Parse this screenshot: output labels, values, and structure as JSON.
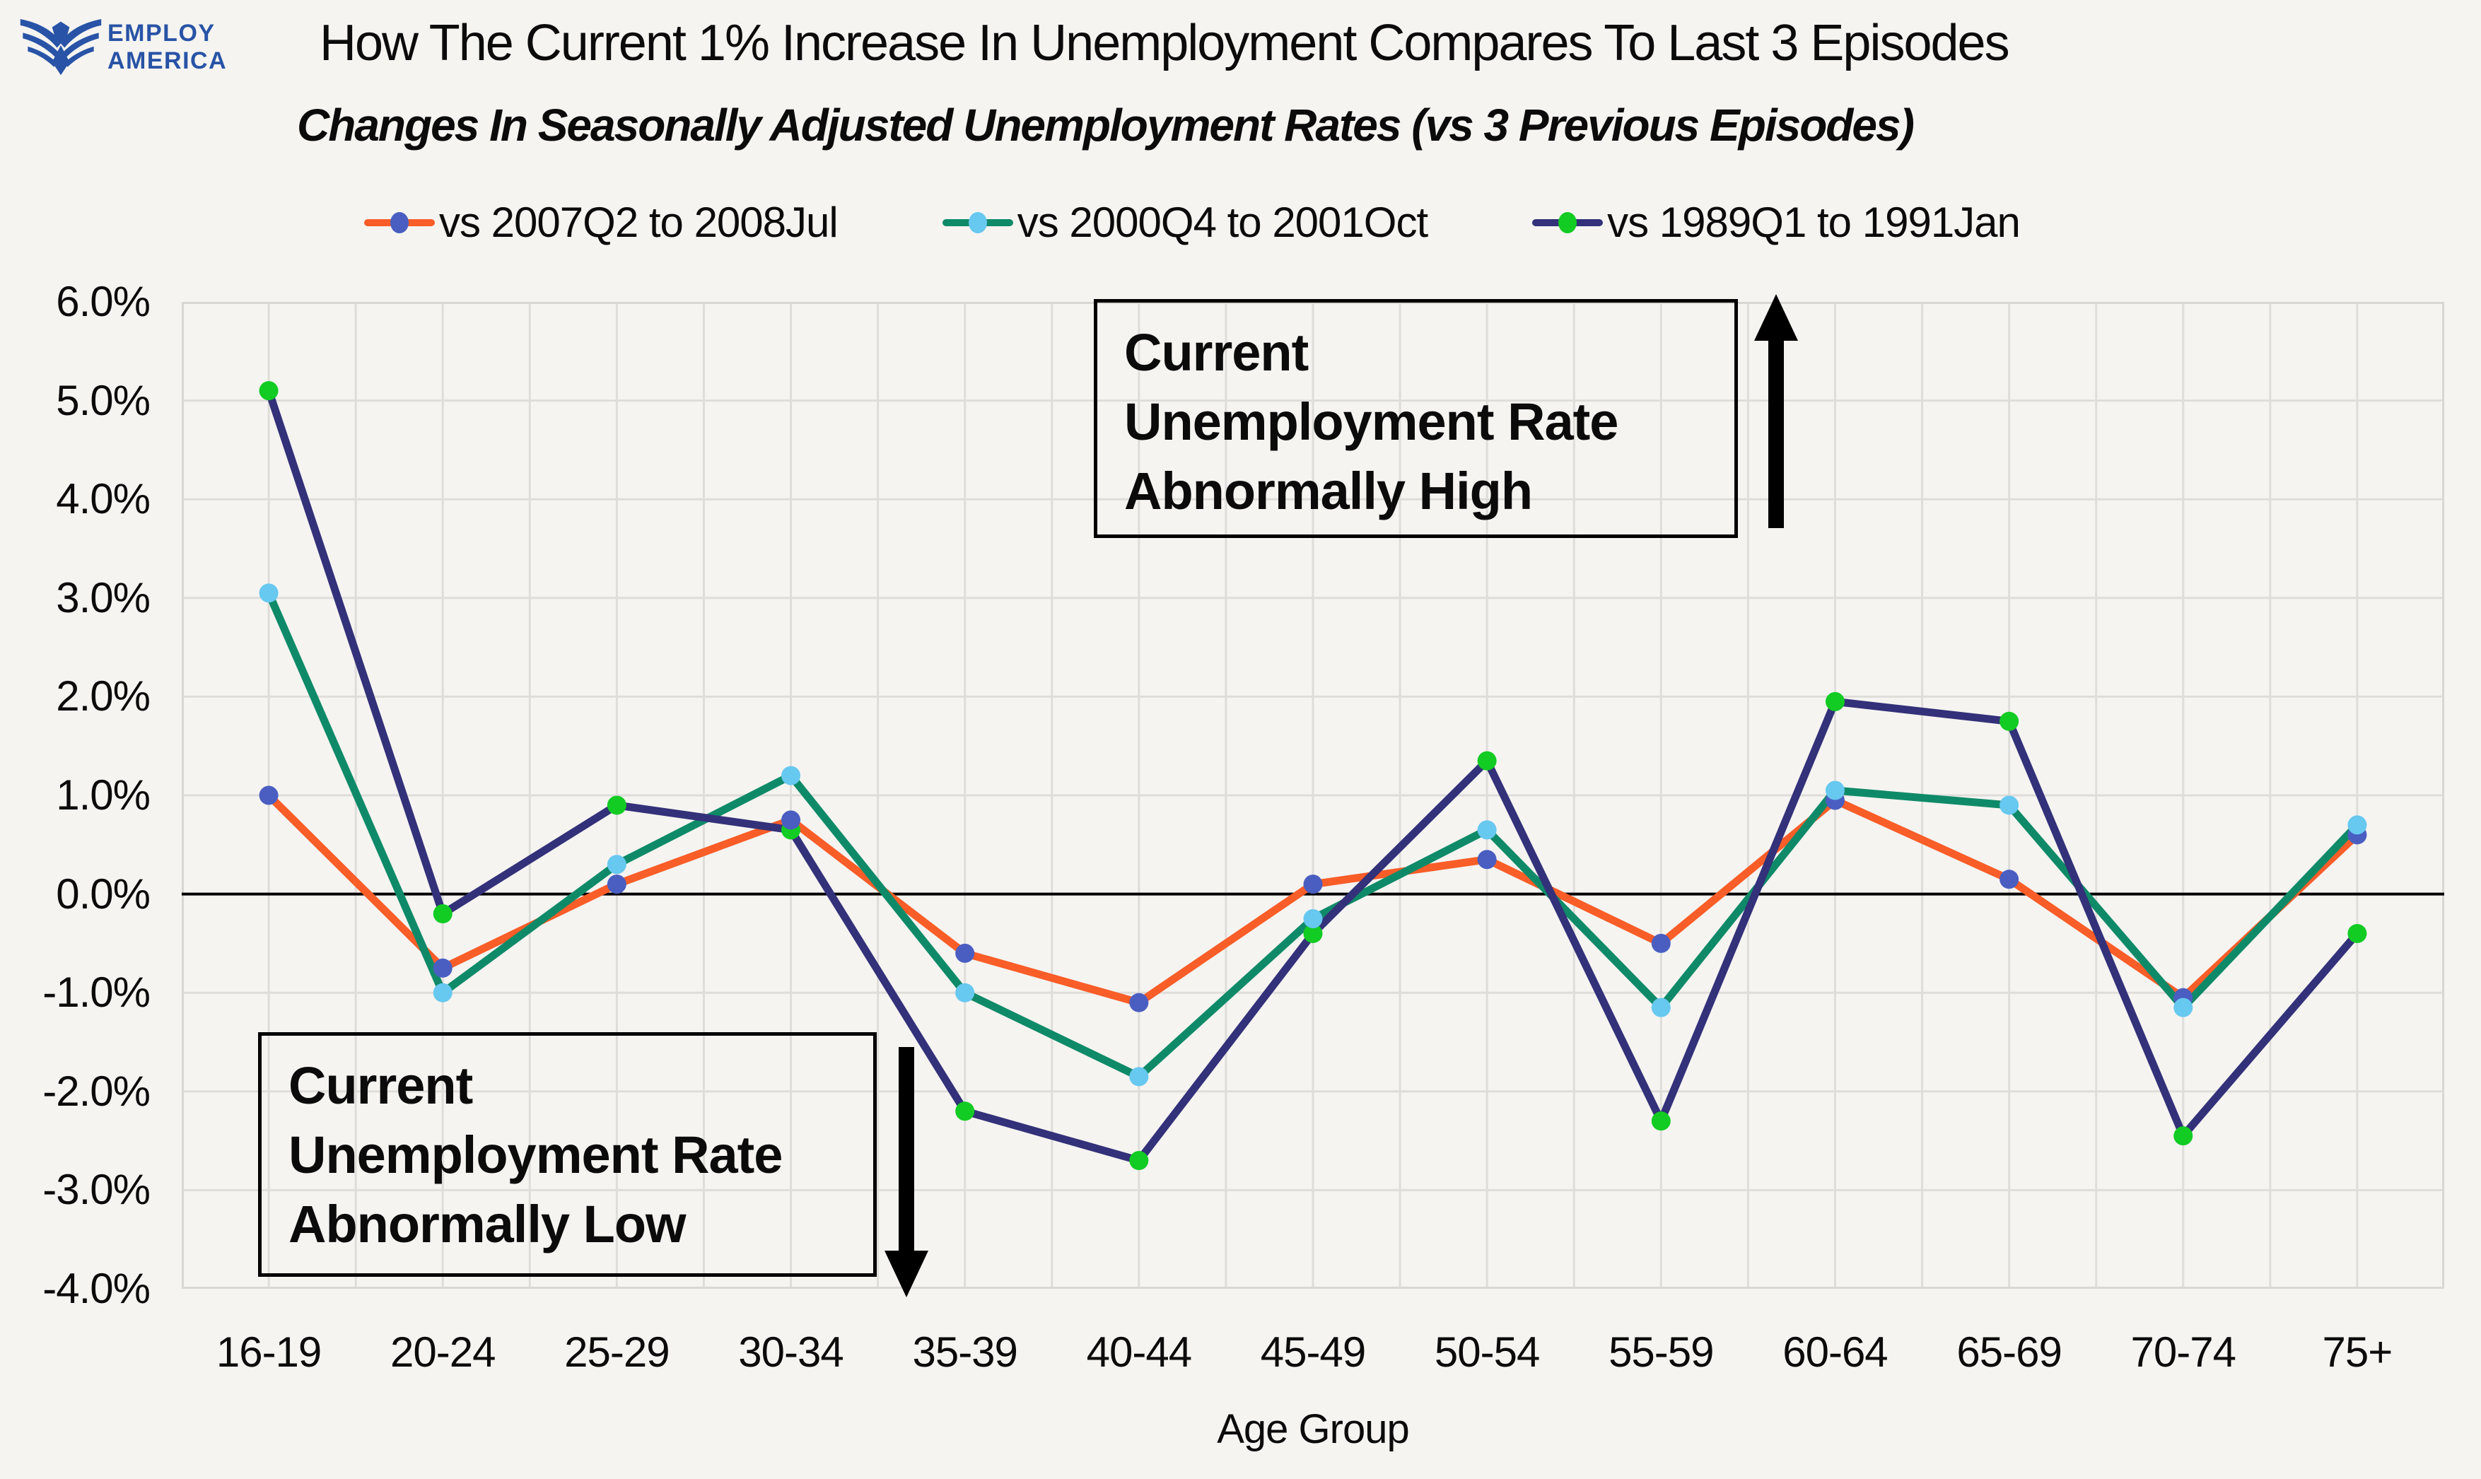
{
  "logo": {
    "line1": "EMPLOY",
    "line2": "AMERICA",
    "color": "#2853A6"
  },
  "chart_data": {
    "type": "line",
    "title": "How The Current 1% Increase In Unemployment Compares To Last 3 Episodes",
    "subtitle": "Changes In Seasonally Adjusted Unemployment Rates (vs 3 Previous Episodes)",
    "xlabel": "Age Group",
    "ylabel": "",
    "ylim": [
      -4.0,
      6.0
    ],
    "ytick_step": 1.0,
    "grid": true,
    "zero_line": true,
    "legend_position": "top",
    "categories": [
      "16-19",
      "20-24",
      "25-29",
      "30-34",
      "35-39",
      "40-44",
      "45-49",
      "50-54",
      "55-59",
      "60-64",
      "65-69",
      "70-74",
      "75+"
    ],
    "yticks": [
      "6.0%",
      "5.0%",
      "4.0%",
      "3.0%",
      "2.0%",
      "1.0%",
      "0.0%",
      "-1.0%",
      "-2.0%",
      "-3.0%",
      "-4.0%"
    ],
    "series": [
      {
        "name": "vs 2007Q2 to 2008Jul",
        "line_color": "#F95D28",
        "marker_color": "#4A5EC1",
        "values": [
          1.0,
          -0.75,
          0.1,
          0.75,
          -0.6,
          -1.1,
          0.1,
          0.35,
          -0.5,
          0.95,
          0.15,
          -1.05,
          0.6
        ]
      },
      {
        "name": "vs 2000Q4 to 2001Oct",
        "line_color": "#0F8A68",
        "marker_color": "#67C8F0",
        "values": [
          3.05,
          -1.0,
          0.3,
          1.2,
          -1.0,
          -1.85,
          -0.25,
          0.65,
          -1.15,
          1.05,
          0.9,
          -1.15,
          0.7
        ]
      },
      {
        "name": "vs 1989Q1 to 1991Jan",
        "line_color": "#333179",
        "marker_color": "#12CB23",
        "values": [
          5.1,
          -0.2,
          0.9,
          0.65,
          -2.2,
          -2.7,
          -0.4,
          1.35,
          -2.3,
          1.95,
          1.75,
          -2.45,
          -0.4
        ]
      }
    ]
  },
  "annotations": {
    "high": {
      "line1": "Current",
      "line2": "Unemployment Rate",
      "line3": "Abnormally High",
      "arrow": "up"
    },
    "low": {
      "line1": "Current",
      "line2": "Unemployment Rate",
      "line3": "Abnormally Low",
      "arrow": "down"
    }
  },
  "colors": {
    "background": "#F5F4F1",
    "grid": "#DEDDDA",
    "plot_border": "#D8D7D4",
    "zero_line": "#000000",
    "text": "#0b0b0b",
    "logo_blue": "#2853A6"
  }
}
